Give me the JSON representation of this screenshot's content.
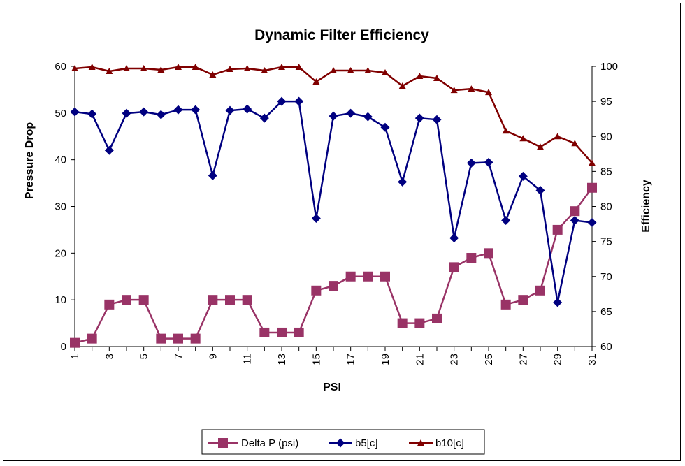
{
  "chart_data": {
    "type": "line",
    "title": "Dynamic Filter Efficiency",
    "xlabel": "PSI",
    "ylabel": "Pressure Drop",
    "y2label": "Efficiency",
    "x": [
      1,
      2,
      3,
      4,
      5,
      6,
      7,
      8,
      9,
      10,
      11,
      12,
      13,
      14,
      15,
      16,
      17,
      18,
      19,
      20,
      21,
      22,
      23,
      24,
      25,
      26,
      27,
      28,
      29,
      30,
      31
    ],
    "x_tick_labels": [
      "1",
      "3",
      "5",
      "7",
      "9",
      "11",
      "13",
      "15",
      "17",
      "19",
      "21",
      "23",
      "25",
      "27",
      "29",
      "31"
    ],
    "ylim": [
      0,
      60
    ],
    "y_ticks": [
      0,
      10,
      20,
      30,
      40,
      50,
      60
    ],
    "y2lim": [
      60,
      100
    ],
    "y2_ticks": [
      60,
      65,
      70,
      75,
      80,
      85,
      90,
      95,
      100
    ],
    "grid": false,
    "legend_position": "bottom-center",
    "series": [
      {
        "name": "Delta P (psi)",
        "axis": "left",
        "color": "#993366",
        "marker": "square",
        "values": [
          0.8,
          1.7,
          9,
          10,
          10,
          1.7,
          1.7,
          1.7,
          10,
          10,
          10,
          3,
          3,
          3,
          12,
          13,
          15,
          15,
          15,
          5,
          5,
          6,
          17,
          19,
          20,
          9,
          10,
          12,
          25,
          29,
          34
        ]
      },
      {
        "name": "b5[c]",
        "axis": "right",
        "color": "#000080",
        "marker": "diamond",
        "values": [
          93.5,
          93.2,
          88,
          93.3,
          93.5,
          93.1,
          93.8,
          93.8,
          84.4,
          93.7,
          93.9,
          92.6,
          95,
          95,
          78.3,
          92.9,
          93.3,
          92.8,
          91.3,
          83.5,
          92.6,
          92.4,
          75.5,
          86.2,
          86.3,
          78,
          84.3,
          82.3,
          66.3,
          78,
          77.7
        ]
      },
      {
        "name": "b10[c]",
        "axis": "right",
        "color": "#800000",
        "marker": "triangle",
        "values": [
          99.7,
          99.9,
          99.3,
          99.7,
          99.7,
          99.5,
          99.9,
          99.9,
          98.8,
          99.6,
          99.7,
          99.4,
          99.9,
          99.9,
          97.8,
          99.4,
          99.4,
          99.4,
          99.1,
          97.2,
          98.6,
          98.3,
          96.6,
          96.8,
          96.3,
          90.8,
          89.7,
          88.5,
          90,
          89,
          86.2
        ]
      }
    ]
  }
}
